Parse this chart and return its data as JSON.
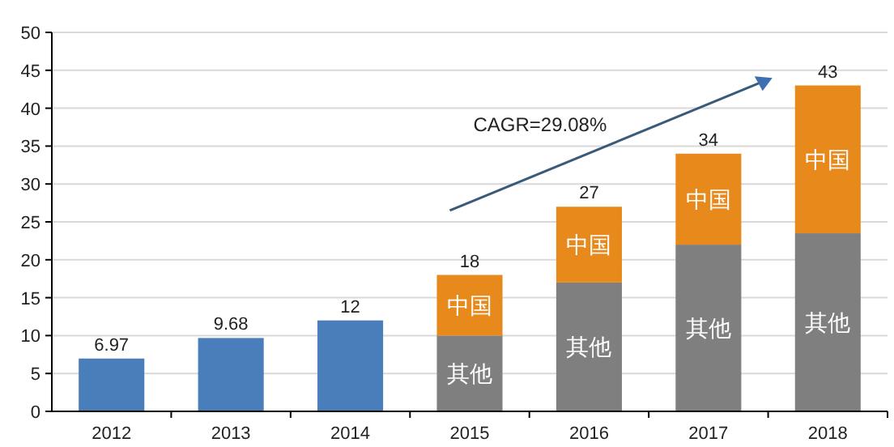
{
  "chart_data": {
    "type": "bar",
    "stacked": true,
    "categories": [
      "2012",
      "2013",
      "2014",
      "2015",
      "2016",
      "2017",
      "2018"
    ],
    "series": [
      {
        "color": "#4a7ebb",
        "values": [
          6.97,
          9.68,
          12,
          null,
          null,
          null,
          null
        ]
      },
      {
        "name": "其他",
        "color": "#7f7f7f",
        "values": [
          null,
          null,
          null,
          10,
          17,
          22,
          23.5
        ]
      },
      {
        "name": "中国",
        "color": "#e8891c",
        "values": [
          null,
          null,
          null,
          8,
          10,
          12,
          19.5
        ]
      }
    ],
    "totals": [
      "6.97",
      "9.68",
      "12",
      "18",
      "27",
      "34",
      "43"
    ],
    "annotations": [
      "CAGR=29.08%"
    ],
    "ylim": [
      0,
      50
    ],
    "yticks": [
      0,
      5,
      10,
      15,
      20,
      25,
      30,
      35,
      40,
      45,
      50
    ],
    "grid": "y"
  }
}
